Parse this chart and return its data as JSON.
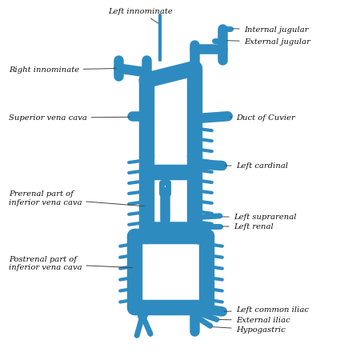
{
  "bg_color": "#ffffff",
  "vessel_color": "#2e8bc0",
  "text_color": "#111111",
  "labels": {
    "left_innominate": "Left innominate",
    "internal_jugular": "Internal jugular",
    "external_jugular": "External jugular",
    "right_innominate": "Right innominate",
    "duct_of_cuvier": "Duct of Cuvier",
    "superior_vena_cava": "Superior vena cava",
    "left_cardinal": "Left cardinal",
    "prerenal": "Prerenal part of\ninferior vena cava",
    "left_suprarenal": "Left suprarenal",
    "left_renal": "Left renal",
    "postrenal": "Postrenal part of\ninferior vena cava",
    "left_common_iliac": "Left common iliac",
    "external_iliac": "External iliac",
    "hypogastric": "Hypogastric"
  }
}
